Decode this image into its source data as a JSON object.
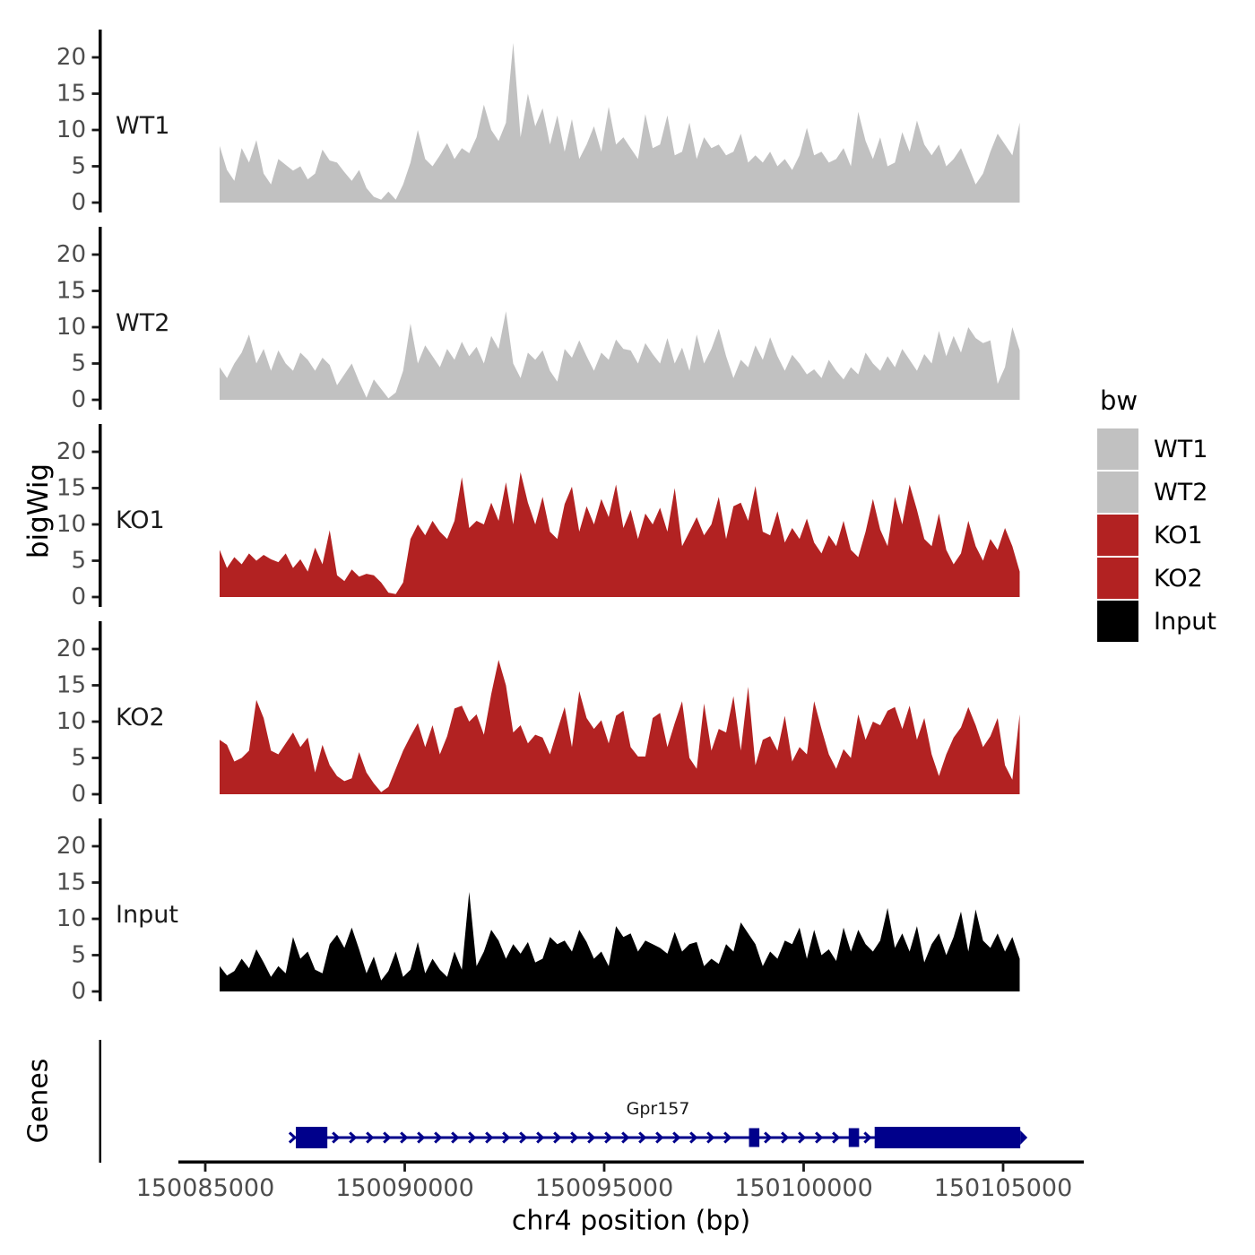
{
  "figure": {
    "y_axis_title": "bigWig",
    "x_axis_title": "chr4 position (bp)",
    "background_color": "#ffffff",
    "axis_line_color": "#000000",
    "tick_label_color": "#4d4d4d"
  },
  "legend": {
    "title": "bw",
    "position": "right",
    "items": [
      {
        "label": "WT1",
        "color": "#c1c1c1"
      },
      {
        "label": "WT2",
        "color": "#c1c1c1"
      },
      {
        "label": "KO1",
        "color": "#b22222"
      },
      {
        "label": "KO2",
        "color": "#b22222"
      },
      {
        "label": "Input",
        "color": "#000000"
      }
    ]
  },
  "chart_data": {
    "type": "area",
    "title": "",
    "xlabel": "chr4 position (bp)",
    "ylabel": "bigWig",
    "x_axis": {
      "chromosome": "chr4",
      "start_bp": 150085360,
      "step_bp": 184,
      "ticks": [
        {
          "bp": 150085000,
          "label": "150085000"
        },
        {
          "bp": 150090000,
          "label": "150090000"
        },
        {
          "bp": 150095000,
          "label": "150095000"
        },
        {
          "bp": 150100000,
          "label": "150100000"
        },
        {
          "bp": 150105000,
          "label": "150105000"
        }
      ]
    },
    "y_axis": {
      "ticks": [
        0,
        5,
        10,
        15,
        20
      ],
      "ylim": [
        0,
        23.5
      ],
      "grid": false
    },
    "series": [
      {
        "name": "WT1",
        "color": "#c1c1c1",
        "values": [
          7.8,
          4.5,
          3.0,
          7.5,
          5.5,
          8.6,
          4.0,
          2.5,
          6.0,
          5.2,
          4.4,
          5.0,
          3.2,
          4.0,
          7.3,
          5.8,
          5.5,
          4.2,
          3.0,
          4.5,
          2.0,
          0.8,
          0.4,
          1.5,
          0.4,
          2.5,
          5.5,
          10.0,
          6.0,
          5.0,
          6.5,
          8.2,
          6.0,
          7.5,
          6.8,
          9.0,
          13.5,
          10.0,
          8.5,
          11.0,
          22.0,
          9.0,
          15.0,
          10.5,
          13.0,
          8.0,
          12.0,
          7.0,
          11.5,
          6.0,
          8.0,
          10.5,
          7.0,
          13.2,
          8.0,
          9.0,
          7.5,
          6.0,
          12.2,
          7.5,
          8.0,
          12.0,
          6.5,
          7.0,
          11.0,
          6.0,
          9.0,
          7.5,
          8.0,
          6.5,
          7.0,
          9.5,
          5.5,
          6.5,
          5.5,
          7.0,
          5.0,
          6.0,
          4.5,
          6.5,
          10.3,
          6.5,
          7.0,
          5.5,
          6.0,
          7.5,
          5.0,
          12.5,
          8.5,
          6.0,
          9.0,
          5.0,
          5.5,
          9.7,
          7.0,
          11.3,
          8.0,
          6.5,
          8.0,
          5.0,
          6.0,
          7.5,
          5.0,
          2.5,
          4.0,
          7.0,
          9.5,
          8.0,
          6.5,
          11.0
        ]
      },
      {
        "name": "WT2",
        "color": "#c1c1c1",
        "values": [
          4.5,
          3.0,
          5.0,
          6.5,
          9.0,
          5.0,
          7.0,
          4.0,
          6.8,
          5.0,
          4.0,
          6.5,
          5.5,
          4.0,
          5.8,
          4.8,
          2.0,
          3.5,
          5.0,
          2.5,
          0.3,
          2.8,
          1.5,
          0.2,
          1.0,
          4.0,
          10.5,
          5.0,
          7.5,
          6.0,
          4.5,
          7.0,
          5.5,
          8.0,
          6.0,
          7.3,
          5.0,
          8.8,
          7.0,
          12.2,
          5.0,
          3.0,
          6.5,
          5.5,
          6.8,
          4.0,
          2.5,
          7.0,
          5.8,
          8.2,
          6.0,
          4.0,
          6.5,
          5.5,
          8.3,
          7.0,
          6.8,
          5.0,
          7.8,
          6.3,
          5.0,
          8.5,
          5.0,
          7.2,
          4.0,
          9.0,
          5.0,
          7.0,
          9.8,
          6.0,
          3.0,
          5.5,
          4.5,
          7.5,
          5.5,
          8.6,
          6.0,
          4.0,
          6.2,
          5.0,
          3.5,
          4.2,
          3.0,
          5.5,
          4.0,
          2.8,
          4.5,
          3.5,
          6.5,
          5.0,
          4.0,
          6.0,
          4.5,
          7.0,
          5.5,
          4.0,
          6.3,
          5.0,
          9.5,
          6.0,
          8.8,
          6.5,
          10.0,
          8.5,
          7.8,
          8.2,
          2.2,
          4.5,
          10.0,
          6.8
        ]
      },
      {
        "name": "KO1",
        "color": "#b22222",
        "values": [
          6.5,
          4.0,
          5.5,
          4.5,
          6.0,
          5.0,
          5.8,
          5.2,
          4.8,
          6.0,
          4.0,
          5.2,
          3.5,
          6.8,
          4.5,
          9.2,
          3.0,
          2.2,
          3.8,
          2.8,
          3.2,
          3.0,
          2.0,
          0.6,
          0.4,
          2.0,
          8.0,
          10.0,
          8.5,
          10.5,
          9.0,
          8.0,
          10.5,
          16.5,
          9.5,
          10.5,
          10.0,
          13.0,
          10.5,
          15.8,
          10.0,
          17.2,
          13.0,
          10.0,
          13.8,
          9.0,
          8.0,
          12.8,
          15.2,
          9.0,
          12.5,
          10.0,
          13.5,
          11.0,
          15.5,
          9.5,
          12.0,
          8.0,
          11.5,
          10.0,
          12.3,
          9.0,
          15.0,
          7.0,
          9.0,
          11.0,
          8.5,
          10.0,
          13.8,
          8.0,
          12.5,
          13.0,
          10.5,
          15.3,
          9.0,
          8.5,
          11.8,
          7.5,
          9.5,
          8.0,
          10.8,
          7.5,
          6.0,
          8.5,
          7.0,
          10.5,
          6.5,
          5.5,
          9.0,
          13.5,
          9.3,
          7.0,
          13.8,
          10.0,
          15.5,
          12.0,
          8.0,
          7.0,
          11.5,
          6.5,
          4.5,
          6.0,
          10.5,
          7.0,
          5.0,
          8.0,
          6.5,
          9.5,
          7.0,
          3.5
        ]
      },
      {
        "name": "KO2",
        "color": "#b22222",
        "values": [
          7.5,
          6.8,
          4.5,
          5.0,
          6.0,
          13.0,
          10.5,
          6.0,
          5.5,
          7.0,
          8.5,
          6.5,
          7.8,
          3.0,
          6.8,
          4.0,
          2.5,
          1.8,
          2.2,
          5.8,
          3.0,
          1.5,
          0.3,
          1.0,
          3.5,
          6.0,
          8.0,
          9.8,
          6.5,
          9.5,
          5.5,
          8.0,
          11.8,
          12.2,
          10.0,
          11.0,
          8.2,
          13.8,
          18.5,
          15.0,
          8.5,
          9.5,
          7.0,
          8.2,
          7.8,
          5.5,
          8.8,
          12.0,
          6.5,
          14.2,
          10.5,
          9.0,
          10.2,
          7.0,
          10.8,
          11.5,
          6.5,
          5.2,
          5.2,
          10.5,
          11.2,
          6.5,
          9.8,
          12.8,
          5.0,
          3.5,
          12.5,
          6.0,
          9.0,
          8.5,
          13.5,
          6.0,
          14.8,
          4.0,
          7.5,
          8.0,
          6.0,
          10.8,
          4.5,
          6.5,
          5.5,
          12.8,
          9.0,
          5.5,
          3.5,
          6.2,
          5.0,
          11.0,
          7.5,
          10.0,
          9.5,
          11.5,
          12.0,
          9.0,
          12.2,
          7.5,
          10.5,
          5.5,
          2.5,
          5.5,
          7.8,
          9.2,
          12.0,
          9.5,
          6.5,
          8.0,
          10.5,
          4.0,
          2.0,
          11.0
        ]
      },
      {
        "name": "Input",
        "color": "#000000",
        "values": [
          3.5,
          2.2,
          2.8,
          4.5,
          3.2,
          5.8,
          4.0,
          2.0,
          3.5,
          2.5,
          7.5,
          4.5,
          5.5,
          3.0,
          2.5,
          6.5,
          7.8,
          6.0,
          8.8,
          5.8,
          2.5,
          4.8,
          1.5,
          2.8,
          5.5,
          2.0,
          3.0,
          6.8,
          2.5,
          4.5,
          3.0,
          2.0,
          5.5,
          3.0,
          13.7,
          3.5,
          5.5,
          8.5,
          7.0,
          4.5,
          6.5,
          5.2,
          6.8,
          4.0,
          4.5,
          7.5,
          6.5,
          7.0,
          5.5,
          8.5,
          6.8,
          4.5,
          5.5,
          3.5,
          9.0,
          7.5,
          8.0,
          5.5,
          7.0,
          6.5,
          6.0,
          5.2,
          8.2,
          5.5,
          6.5,
          6.8,
          3.5,
          4.5,
          3.8,
          6.5,
          5.5,
          9.5,
          8.0,
          6.5,
          3.5,
          5.5,
          4.5,
          7.0,
          6.5,
          8.8,
          4.5,
          8.5,
          5.0,
          5.8,
          4.2,
          8.8,
          5.5,
          8.5,
          6.5,
          5.5,
          7.0,
          11.5,
          6.0,
          8.0,
          5.5,
          9.0,
          4.0,
          6.5,
          8.0,
          5.0,
          7.5,
          11.0,
          5.5,
          11.3,
          7.0,
          6.0,
          8.0,
          5.5,
          7.5,
          4.5
        ]
      }
    ]
  },
  "genes_track": {
    "title": "Genes",
    "gene": {
      "name": "Gpr157",
      "strand": "+",
      "color": "#00008b",
      "start_bp": 150087200,
      "end_bp": 150105430,
      "label_bp": 150096350,
      "exons_bp": [
        [
          150087270,
          150088060
        ],
        [
          150098630,
          150098890
        ],
        [
          150101130,
          150101390
        ],
        [
          150101780,
          150105430
        ]
      ]
    }
  }
}
